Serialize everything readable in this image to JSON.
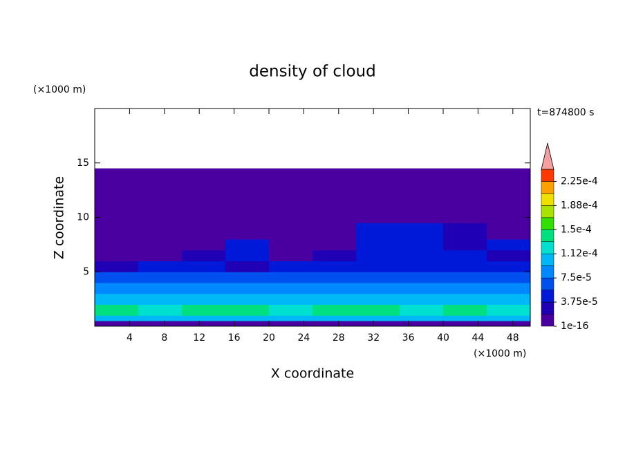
{
  "chart_data": {
    "type": "contour",
    "title": "density of cloud",
    "x_label": "X coordinate",
    "y_label": "Z coordinate",
    "x_unit": "(×1000 m)",
    "y_unit": "(×1000 m)",
    "time_label": "t=874800 s",
    "xlim": [
      0,
      50
    ],
    "ylim": [
      0,
      20
    ],
    "xticks": [
      4,
      8,
      12,
      16,
      20,
      24,
      28,
      32,
      36,
      40,
      44,
      48
    ],
    "yticks": [
      5,
      10,
      15
    ],
    "x_edges": [
      0,
      5,
      10,
      15,
      20,
      25,
      30,
      35,
      40,
      45,
      50
    ],
    "y_edges": [
      0,
      0.5,
      1,
      2,
      3,
      4,
      5,
      6,
      7,
      8,
      9.5,
      14.5
    ],
    "z": [
      [
        1.5e-05,
        1.5e-05,
        1.5e-05,
        1.5e-05,
        1.5e-05,
        1.5e-05,
        1.5e-05,
        1.5e-05,
        1.5e-05,
        1.5e-05
      ],
      [
        9.5e-05,
        9.5e-05,
        9.5e-05,
        9.5e-05,
        9.5e-05,
        9.5e-05,
        9.5e-05,
        9.5e-05,
        9.5e-05,
        9.5e-05
      ],
      [
        0.000135,
        0.00013,
        0.00014,
        0.000135,
        0.00013,
        0.00014,
        0.000135,
        0.00013,
        0.00014,
        0.00013
      ],
      [
        0.000105,
        0.0001,
        0.000105,
        0.0001,
        0.000105,
        0.0001,
        0.000105,
        0.0001,
        0.000105,
        0.0001
      ],
      [
        8e-05,
        8e-05,
        8e-05,
        8e-05,
        8e-05,
        8e-05,
        8e-05,
        8e-05,
        8e-05,
        8e-05
      ],
      [
        6e-05,
        6e-05,
        6e-05,
        6e-05,
        6e-05,
        6e-05,
        6e-05,
        6e-05,
        6e-05,
        6e-05
      ],
      [
        2e-05,
        4e-05,
        4e-05,
        3e-05,
        4e-05,
        4e-05,
        5e-05,
        5e-05,
        4e-05,
        4e-05
      ],
      [
        5e-06,
        5e-06,
        2e-05,
        4e-05,
        5e-06,
        2e-05,
        4e-05,
        4e-05,
        4e-05,
        2e-05
      ],
      [
        5e-06,
        5e-06,
        5e-06,
        4e-05,
        5e-06,
        5e-06,
        4e-05,
        4e-05,
        2e-05,
        4e-05
      ],
      [
        5e-06,
        5e-06,
        5e-06,
        5e-06,
        5e-06,
        5e-06,
        4e-05,
        4e-05,
        2e-05,
        5e-06
      ],
      [
        5e-06,
        5e-06,
        5e-06,
        5e-06,
        5e-06,
        5e-06,
        5e-06,
        5e-06,
        5e-06,
        5e-06
      ]
    ],
    "colorbar": {
      "levels": [
        1e-16,
        1.875e-05,
        3.75e-05,
        5.625e-05,
        7.5e-05,
        9.375e-05,
        0.0001125,
        0.00013125,
        0.00015,
        0.00016875,
        0.0001875,
        0.00020625,
        0.000225,
        0.00024375
      ],
      "colors": [
        "#4a00a0",
        "#2000b4",
        "#0018d8",
        "#0050f0",
        "#0088ff",
        "#00b8f8",
        "#00e0d0",
        "#00e080",
        "#30e000",
        "#a8e400",
        "#f0e000",
        "#ffa000",
        "#ff3800"
      ],
      "extend_color": "#f4a0a0",
      "ticks": [
        {
          "value": 1e-16,
          "label": "1e-16"
        },
        {
          "value": 3.75e-05,
          "label": "3.75e-5"
        },
        {
          "value": 7.5e-05,
          "label": "7.5e-5"
        },
        {
          "value": 0.0001125,
          "label": "1.12e-4"
        },
        {
          "value": 0.00015,
          "label": "1.5e-4"
        },
        {
          "value": 0.0001875,
          "label": "1.88e-4"
        },
        {
          "value": 0.000225,
          "label": "2.25e-4"
        }
      ]
    }
  }
}
